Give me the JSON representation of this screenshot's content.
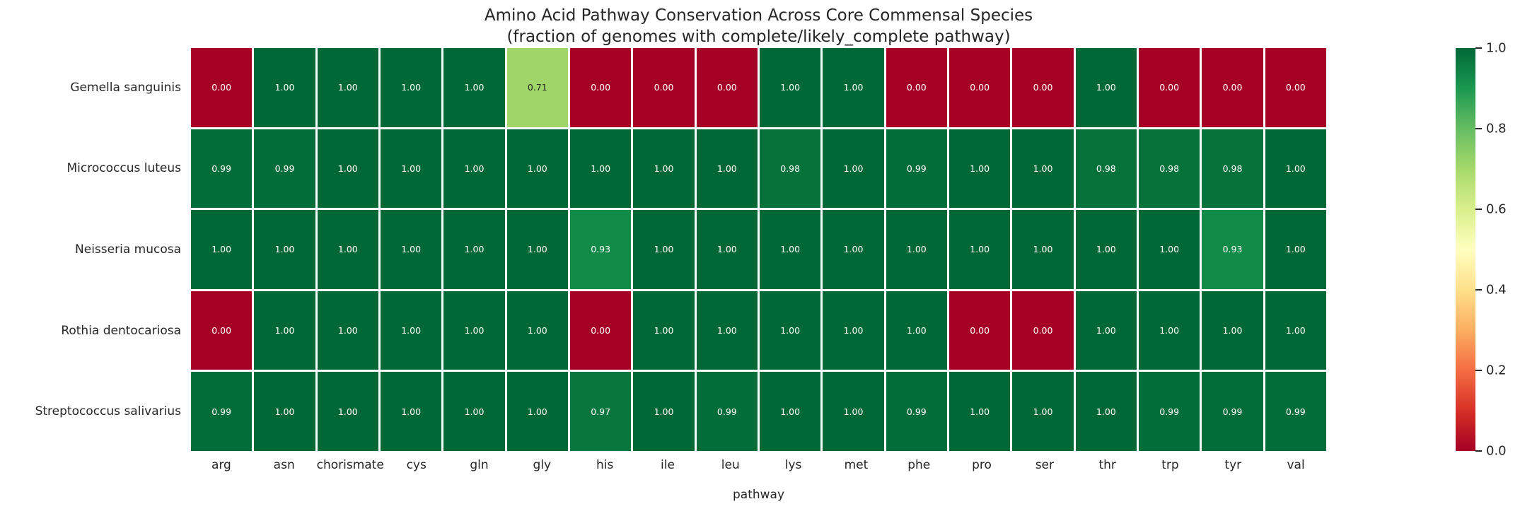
{
  "title": "Amino Acid Pathway Conservation Across Core Commensal Species",
  "subtitle": "(fraction of genomes with complete/likely_complete pathway)",
  "chart_data": {
    "type": "heatmap",
    "title": "Amino Acid Pathway Conservation Across Core Commensal Species",
    "subtitle": "(fraction of genomes with complete/likely_complete pathway)",
    "xlabel": "pathway",
    "ylabel": "",
    "rows": [
      "Gemella sanguinis",
      "Micrococcus luteus",
      "Neisseria mucosa",
      "Rothia dentocariosa",
      "Streptococcus salivarius"
    ],
    "columns": [
      "arg",
      "asn",
      "chorismate",
      "cys",
      "gln",
      "gly",
      "his",
      "ile",
      "leu",
      "lys",
      "met",
      "phe",
      "pro",
      "ser",
      "thr",
      "trp",
      "tyr",
      "val"
    ],
    "values": [
      [
        0.0,
        1.0,
        1.0,
        1.0,
        1.0,
        0.71,
        0.0,
        0.0,
        0.0,
        1.0,
        1.0,
        0.0,
        0.0,
        0.0,
        1.0,
        0.0,
        0.0,
        0.0
      ],
      [
        0.99,
        0.99,
        1.0,
        1.0,
        1.0,
        1.0,
        1.0,
        1.0,
        1.0,
        0.98,
        1.0,
        0.99,
        1.0,
        1.0,
        0.98,
        0.98,
        0.98,
        1.0
      ],
      [
        1.0,
        1.0,
        1.0,
        1.0,
        1.0,
        1.0,
        0.93,
        1.0,
        1.0,
        1.0,
        1.0,
        1.0,
        1.0,
        1.0,
        1.0,
        1.0,
        0.93,
        1.0
      ],
      [
        0.0,
        1.0,
        1.0,
        1.0,
        1.0,
        1.0,
        0.0,
        1.0,
        1.0,
        1.0,
        1.0,
        1.0,
        0.0,
        0.0,
        1.0,
        1.0,
        1.0,
        1.0
      ],
      [
        0.99,
        1.0,
        1.0,
        1.0,
        1.0,
        1.0,
        0.97,
        1.0,
        0.99,
        1.0,
        1.0,
        0.99,
        1.0,
        1.0,
        1.0,
        0.99,
        0.99,
        0.99
      ]
    ],
    "value_decimals": 2,
    "grid_on": false,
    "colorbar": {
      "min": 0.0,
      "max": 1.0,
      "tick_labels": [
        "1.0",
        "0.8",
        "0.6",
        "0.4",
        "0.2",
        "0.0"
      ],
      "position": "right"
    },
    "colormap": {
      "name": "RdYlGn",
      "anchors": [
        "#a50026",
        "#d73027",
        "#f46d43",
        "#fdae61",
        "#fee08b",
        "#ffffbf",
        "#d9ef8b",
        "#a6d96a",
        "#66bd63",
        "#1a9850",
        "#006837"
      ]
    },
    "annotation_colors": {
      "on_dark": "#ffffff",
      "on_light": "#262626"
    }
  }
}
